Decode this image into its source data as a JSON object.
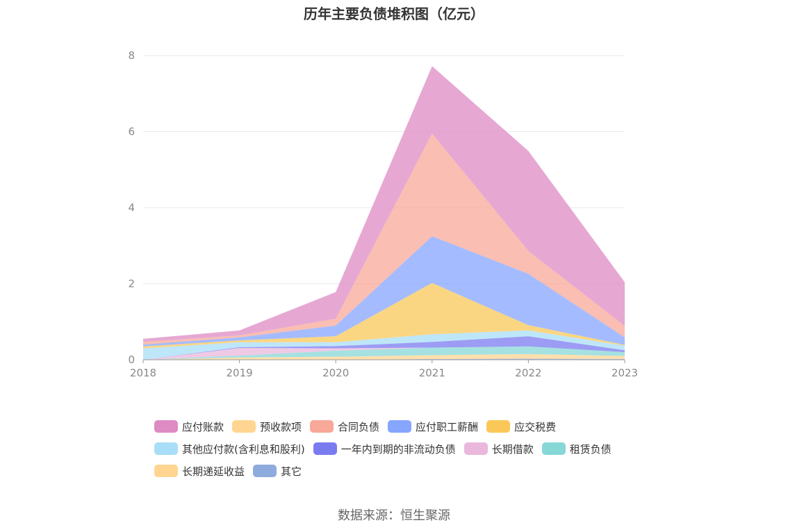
{
  "chart_data": {
    "type": "area",
    "stacked": true,
    "title": "历年主要负债堆积图（亿元）",
    "x": [
      "2018",
      "2019",
      "2020",
      "2021",
      "2022",
      "2023"
    ],
    "ylim": [
      0,
      8
    ],
    "yticks": [
      "0",
      "2",
      "4",
      "6",
      "8"
    ],
    "grid": true,
    "legend_position": "bottom",
    "series": [
      {
        "name": "其它",
        "color": "#8faadc",
        "values": [
          0.0,
          0.0,
          0.0,
          0.02,
          0.03,
          0.02
        ]
      },
      {
        "name": "长期递延收益",
        "color": "#ffd591",
        "values": [
          0.0,
          0.06,
          0.08,
          0.1,
          0.12,
          0.08
        ]
      },
      {
        "name": "租赁负债",
        "color": "#87d7d7",
        "values": [
          0.0,
          0.05,
          0.16,
          0.2,
          0.2,
          0.1
        ]
      },
      {
        "name": "长期借款",
        "color": "#eab8dc",
        "values": [
          0.0,
          0.2,
          0.06,
          0.0,
          0.0,
          0.0
        ]
      },
      {
        "name": "一年内到期的非流动负债",
        "color": "#7b7bf0",
        "values": [
          0.0,
          0.02,
          0.06,
          0.15,
          0.27,
          0.05
        ]
      },
      {
        "name": "其他应付款(含利息和股利)",
        "color": "#a8def7",
        "values": [
          0.3,
          0.13,
          0.1,
          0.2,
          0.15,
          0.12
        ]
      },
      {
        "name": "应交税费",
        "color": "#fac858",
        "values": [
          0.05,
          0.05,
          0.16,
          1.35,
          0.14,
          0.02
        ]
      },
      {
        "name": "应付职工薪酬",
        "color": "#85a5ff",
        "values": [
          0.05,
          0.08,
          0.28,
          1.23,
          1.35,
          0.2
        ]
      },
      {
        "name": "合同负债",
        "color": "#f8a898",
        "values": [
          0.07,
          0.05,
          0.18,
          2.7,
          0.6,
          0.3
        ]
      },
      {
        "name": "预收款项",
        "color": "#ffd591",
        "values": [
          0.0,
          0.0,
          0.0,
          0.0,
          0.0,
          0.0
        ]
      },
      {
        "name": "应付账款",
        "color": "#de8bc4",
        "values": [
          0.08,
          0.13,
          0.7,
          1.77,
          2.63,
          1.15
        ]
      }
    ],
    "legend": [
      [
        {
          "name": "应付账款",
          "color": "#de8bc4"
        },
        {
          "name": "预收款项",
          "color": "#ffd591"
        },
        {
          "name": "合同负债",
          "color": "#f8a898"
        },
        {
          "name": "应付职工薪酬",
          "color": "#85a5ff"
        },
        {
          "name": "应交税费",
          "color": "#fac858"
        }
      ],
      [
        {
          "name": "其他应付款(含利息和股利)",
          "color": "#a8def7"
        },
        {
          "name": "一年内到期的非流动负债",
          "color": "#7b7bf0"
        },
        {
          "name": "长期借款",
          "color": "#eab8dc"
        },
        {
          "name": "租赁负债",
          "color": "#87d7d7"
        }
      ],
      [
        {
          "name": "长期递延收益",
          "color": "#ffd591"
        },
        {
          "name": "其它",
          "color": "#8faadc"
        }
      ]
    ],
    "source": "数据来源：恒生聚源"
  }
}
